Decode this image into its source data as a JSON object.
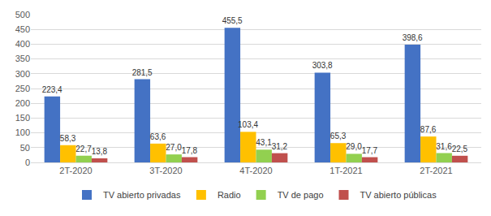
{
  "chart_data": {
    "type": "bar",
    "categories": [
      "2T-2020",
      "3T-2020",
      "4T-2020",
      "1T-2021",
      "2T-2021"
    ],
    "series": [
      {
        "name": "TV abierto privadas",
        "color": "#4472C4",
        "values": [
          223.4,
          281.5,
          455.5,
          303.8,
          398.6
        ],
        "value_labels": [
          "223,4",
          "281,5",
          "455,5",
          "303,8",
          "398,6"
        ]
      },
      {
        "name": "Radio",
        "color": "#FFC000",
        "values": [
          58.3,
          63.6,
          103.4,
          65.3,
          87.6
        ],
        "value_labels": [
          "58,3",
          "63,6",
          "103,4",
          "65,3",
          "87,6"
        ]
      },
      {
        "name": "TV de pago",
        "color": "#92D050",
        "values": [
          22.7,
          27.0,
          43.1,
          29.0,
          31.6
        ],
        "value_labels": [
          "22,7",
          "27,0",
          "43,1",
          "29,0",
          "31,6"
        ]
      },
      {
        "name": "TV abierto públicas",
        "color": "#C0504D",
        "values": [
          13.8,
          17.8,
          31.2,
          17.7,
          22.5
        ],
        "value_labels": [
          "13,8",
          "17,8",
          "31,2",
          "17,7",
          "22,5"
        ]
      }
    ],
    "ylim": [
      0,
      500
    ],
    "yticks": [
      0,
      50,
      100,
      150,
      200,
      250,
      300,
      350,
      400,
      450,
      500
    ],
    "grid": true,
    "legend": "bottom",
    "data_labels": true
  }
}
